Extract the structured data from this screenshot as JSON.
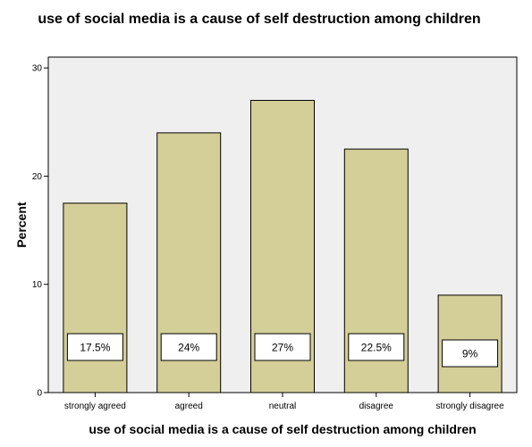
{
  "colors": {
    "plot_background": "#efefef",
    "bar_fill": "#d4cf98",
    "bar_stroke": "#000000",
    "label_box": "#ffffff"
  },
  "chart_data": {
    "type": "bar",
    "title": "use of social media is a cause of self destruction among children",
    "xlabel": "use of social media is a cause of self destruction among children",
    "ylabel": "Percent",
    "categories": [
      "strongly agreed",
      "agreed",
      "neutral",
      "disagree",
      "strongly disagree"
    ],
    "values": [
      17.5,
      24,
      27,
      22.5,
      9
    ],
    "data_labels": [
      "17.5%",
      "24%",
      "27%",
      "22.5%",
      "9%"
    ],
    "ylim": [
      0,
      31
    ],
    "yticks": [
      0,
      10,
      20,
      30
    ],
    "grid": false,
    "legend": "none"
  }
}
